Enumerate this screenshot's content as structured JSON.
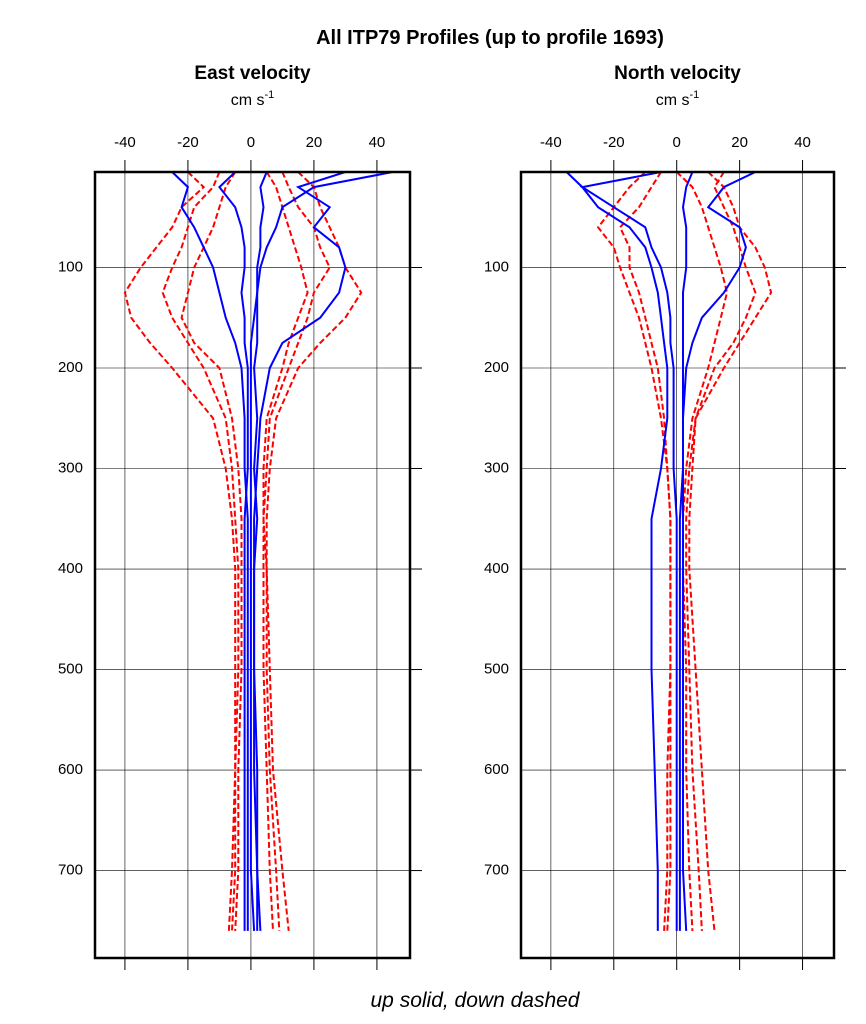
{
  "title": "All ITP79 Profiles (up to profile 1693)",
  "footer": "up solid, down dashed",
  "chart_data": [
    {
      "type": "line",
      "title": "East velocity",
      "units": "cm s",
      "units_exp": "-1",
      "xlim": [
        -49.5,
        50.5
      ],
      "xticks": [
        -40,
        -20,
        0,
        20,
        40
      ],
      "ylim": [
        5,
        787
      ],
      "y_inverted": true,
      "yticks": [
        100,
        200,
        300,
        400,
        500,
        600,
        700
      ],
      "grid": true,
      "depths": [
        5,
        20,
        40,
        60,
        80,
        100,
        125,
        150,
        175,
        200,
        250,
        300,
        350,
        400,
        500,
        600,
        700,
        760
      ],
      "series": [
        {
          "color": "#ff0000",
          "dashed": true,
          "values": [
            -20,
            -15,
            -22,
            -25,
            -30,
            -35,
            -40,
            -38,
            -32,
            -25,
            -12,
            -8,
            -6,
            -5,
            -5,
            -5,
            -6,
            -7
          ]
        },
        {
          "color": "#ff0000",
          "dashed": true,
          "values": [
            15,
            20,
            22,
            25,
            28,
            30,
            35,
            30,
            22,
            15,
            8,
            6,
            5,
            5,
            6,
            7,
            10,
            12
          ]
        },
        {
          "color": "#ff0000",
          "dashed": true,
          "values": [
            -10,
            -12,
            -18,
            -20,
            -22,
            -25,
            -28,
            -25,
            -20,
            -15,
            -8,
            -6,
            -5,
            -4,
            -4,
            -5,
            -5,
            -6
          ]
        },
        {
          "color": "#ff0000",
          "dashed": true,
          "values": [
            10,
            12,
            15,
            20,
            22,
            25,
            20,
            18,
            15,
            12,
            6,
            5,
            4,
            5,
            5,
            6,
            8,
            9
          ]
        },
        {
          "color": "#ff0000",
          "dashed": true,
          "values": [
            -5,
            -8,
            -10,
            -12,
            -15,
            -18,
            -20,
            -22,
            -18,
            -10,
            -6,
            -4,
            -3,
            -3,
            -3,
            -4,
            -4,
            -5
          ]
        },
        {
          "color": "#ff0000",
          "dashed": true,
          "values": [
            5,
            8,
            10,
            12,
            14,
            16,
            18,
            15,
            12,
            10,
            5,
            4,
            4,
            4,
            4,
            5,
            6,
            7
          ]
        },
        {
          "color": "#0000ff",
          "dashed": false,
          "values": [
            45,
            20,
            10,
            8,
            5,
            3,
            2,
            1,
            0,
            0,
            0,
            0,
            0,
            0,
            0,
            0,
            0,
            1
          ]
        },
        {
          "color": "#0000ff",
          "dashed": false,
          "values": [
            -25,
            -20,
            -22,
            -18,
            -15,
            -12,
            -10,
            -8,
            -5,
            -3,
            -2,
            -2,
            -1,
            -1,
            -1,
            -1,
            -1,
            -1
          ]
        },
        {
          "color": "#0000ff",
          "dashed": false,
          "values": [
            30,
            15,
            25,
            20,
            28,
            30,
            28,
            22,
            10,
            6,
            3,
            2,
            1,
            1,
            1,
            2,
            2,
            3
          ]
        },
        {
          "color": "#0000ff",
          "dashed": false,
          "values": [
            -5,
            -10,
            -5,
            -3,
            -2,
            -2,
            -3,
            -2,
            -2,
            -1,
            -1,
            -1,
            -2,
            -2,
            -2,
            -2,
            -2,
            -2
          ]
        },
        {
          "color": "#0000ff",
          "dashed": false,
          "values": [
            5,
            3,
            4,
            3,
            3,
            2,
            2,
            2,
            2,
            1,
            2,
            1,
            2,
            1,
            1,
            1,
            2,
            2
          ]
        }
      ]
    },
    {
      "type": "line",
      "title": "North velocity",
      "units": "cm s",
      "units_exp": "-1",
      "xlim": [
        -49.5,
        50
      ],
      "xticks": [
        -40,
        -20,
        0,
        20,
        40
      ],
      "ylim": [
        5,
        787
      ],
      "y_inverted": true,
      "yticks": [
        100,
        200,
        300,
        400,
        500,
        600,
        700
      ],
      "grid": true,
      "depths": [
        5,
        20,
        40,
        60,
        80,
        100,
        125,
        150,
        175,
        200,
        250,
        300,
        350,
        400,
        500,
        600,
        700,
        760
      ],
      "series": [
        {
          "color": "#ff0000",
          "dashed": true,
          "values": [
            -10,
            -15,
            -20,
            -25,
            -20,
            -18,
            -15,
            -12,
            -10,
            -8,
            -5,
            -3,
            -2,
            -2,
            -2,
            -2,
            -2,
            -3
          ]
        },
        {
          "color": "#ff0000",
          "dashed": true,
          "values": [
            10,
            15,
            18,
            20,
            25,
            28,
            30,
            25,
            20,
            15,
            6,
            5,
            4,
            4,
            6,
            8,
            10,
            12
          ]
        },
        {
          "color": "#ff0000",
          "dashed": true,
          "values": [
            -5,
            -8,
            -12,
            -18,
            -15,
            -15,
            -12,
            -10,
            -8,
            -6,
            -4,
            -3,
            -2,
            -2,
            -2,
            -3,
            -3,
            -4
          ]
        },
        {
          "color": "#ff0000",
          "dashed": true,
          "values": [
            15,
            12,
            15,
            18,
            20,
            22,
            25,
            22,
            18,
            12,
            6,
            4,
            3,
            3,
            4,
            5,
            7,
            8
          ]
        },
        {
          "color": "#ff0000",
          "dashed": true,
          "values": [
            0,
            5,
            8,
            10,
            12,
            14,
            16,
            14,
            12,
            10,
            5,
            3,
            2,
            2,
            3,
            3,
            4,
            5
          ]
        },
        {
          "color": "#0000ff",
          "dashed": false,
          "values": [
            -35,
            -30,
            -25,
            -15,
            -10,
            -8,
            -6,
            -5,
            -4,
            -3,
            -3,
            -5,
            -8,
            -8,
            -8,
            -7,
            -6,
            -6
          ]
        },
        {
          "color": "#0000ff",
          "dashed": false,
          "values": [
            25,
            15,
            10,
            20,
            22,
            20,
            15,
            8,
            5,
            3,
            2,
            2,
            1,
            1,
            1,
            1,
            1,
            1
          ]
        },
        {
          "color": "#0000ff",
          "dashed": false,
          "values": [
            -5,
            -30,
            -20,
            -10,
            -8,
            -5,
            -3,
            -2,
            -2,
            -1,
            -1,
            -1,
            0,
            0,
            0,
            0,
            0,
            0
          ]
        },
        {
          "color": "#0000ff",
          "dashed": false,
          "values": [
            5,
            3,
            2,
            3,
            3,
            3,
            2,
            2,
            2,
            2,
            2,
            2,
            2,
            2,
            2,
            2,
            2,
            3
          ]
        }
      ]
    }
  ]
}
